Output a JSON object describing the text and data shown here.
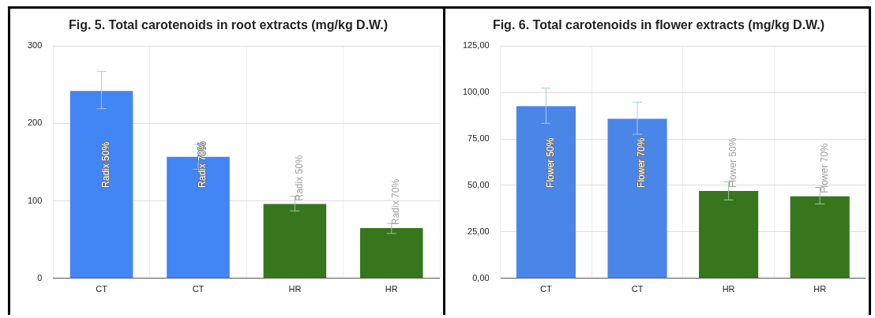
{
  "chart_data": [
    {
      "type": "bar",
      "title": "Fig. 5. Total carotenoids in root extracts (mg/kg D.W.)",
      "categories": [
        "CT",
        "CT",
        "HR",
        "HR"
      ],
      "values": [
        242,
        157,
        96,
        65
      ],
      "colors": [
        "#4285f4",
        "#4285f4",
        "#38761d",
        "#38761d"
      ],
      "errors": [
        [
          219,
          267
        ],
        [
          141,
          173
        ],
        [
          87,
          106
        ],
        [
          58,
          71
        ]
      ],
      "value_labels": [
        "Radix 50%",
        "Radix 70%",
        "Radix 50%",
        "Radix 70%"
      ],
      "ylim": [
        0,
        300
      ],
      "yticks": [
        0,
        100,
        200,
        300
      ],
      "grid": true
    },
    {
      "type": "bar",
      "title": "Fig. 6. Total carotenoids in flower extracts (mg/kg D.W.)",
      "categories": [
        "CT",
        "CT",
        "HR",
        "HR"
      ],
      "values": [
        92.6,
        85.8,
        47.0,
        44.1
      ],
      "colors": [
        "#4a86e8",
        "#4a86e8",
        "#38761d",
        "#38761d"
      ],
      "errors": [
        [
          83.4,
          102.3
        ],
        [
          77.5,
          94.7
        ],
        [
          42.2,
          51.9
        ],
        [
          40.0,
          48.9
        ]
      ],
      "value_labels": [
        "Flower 50%",
        "Flower 70%",
        "Flower 50%",
        "Flower 70%"
      ],
      "ylim": [
        0,
        125
      ],
      "yticks": [
        {
          "value": 0,
          "label": "0,00"
        },
        {
          "value": 25,
          "label": "25,00"
        },
        {
          "value": 50,
          "label": "50,00"
        },
        {
          "value": 75,
          "label": "75,00"
        },
        {
          "value": 100,
          "label": "100,00"
        },
        {
          "value": 125,
          "label": "125,00"
        }
      ],
      "grid": true
    }
  ]
}
